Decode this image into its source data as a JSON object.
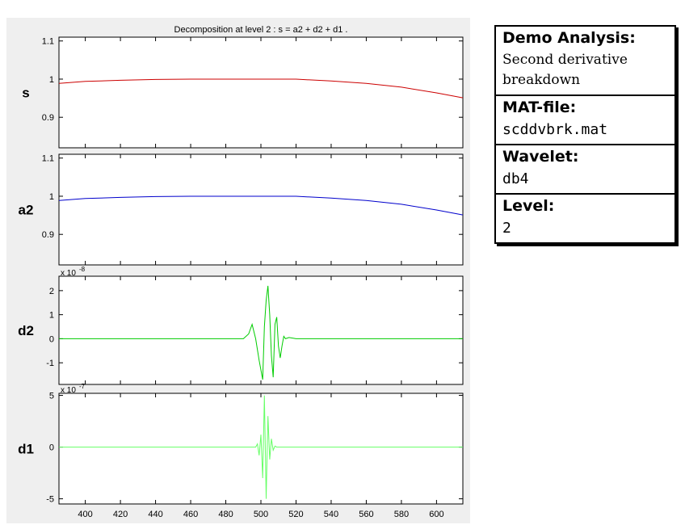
{
  "info_panel": {
    "sections": [
      {
        "heading": "Demo Analysis:",
        "value": "Second derivative breakdown"
      },
      {
        "heading": "MAT-file:",
        "value": "scddvbrk.mat"
      },
      {
        "heading": "Wavelet:",
        "value": "db4"
      },
      {
        "heading": "Level:",
        "value": "2"
      }
    ]
  },
  "chart_data": [
    {
      "type": "line",
      "title": "Decomposition at level 2 : s = a2 + d2 + d1 .",
      "ylabel": "s",
      "xlim": [
        385,
        615
      ],
      "ylim": [
        0.82,
        1.11
      ],
      "yticks": [
        0.9,
        1,
        1.1
      ],
      "ytick_labels": [
        "0.9",
        "1",
        "1.1"
      ],
      "exponent_label": "",
      "color": "#cc0000",
      "series": [
        {
          "x": [
            385,
            400,
            420,
            440,
            460,
            480,
            500,
            520,
            540,
            560,
            580,
            600,
            615
          ],
          "values": [
            0.989,
            0.994,
            0.997,
            0.999,
            1.0,
            1.0,
            1.0,
            1.0,
            0.995,
            0.989,
            0.979,
            0.964,
            0.951
          ]
        }
      ]
    },
    {
      "type": "line",
      "title": "",
      "ylabel": "a2",
      "xlim": [
        385,
        615
      ],
      "ylim": [
        0.82,
        1.11
      ],
      "yticks": [
        0.9,
        1,
        1.1
      ],
      "ytick_labels": [
        "0.9",
        "1",
        "1.1"
      ],
      "exponent_label": "",
      "color": "#0000cc",
      "series": [
        {
          "x": [
            385,
            400,
            420,
            440,
            460,
            480,
            500,
            520,
            540,
            560,
            580,
            600,
            615
          ],
          "values": [
            0.989,
            0.994,
            0.997,
            0.999,
            1.0,
            1.0,
            1.0,
            1.0,
            0.995,
            0.989,
            0.979,
            0.964,
            0.951
          ]
        }
      ]
    },
    {
      "type": "line",
      "title": "",
      "ylabel": "d2",
      "xlim": [
        385,
        615
      ],
      "ylim": [
        -1.9,
        2.6
      ],
      "yticks": [
        -1,
        0,
        1,
        2
      ],
      "ytick_labels": [
        "-1",
        "0",
        "1",
        "2"
      ],
      "exponent_label": "x 10",
      "exponent_power": "-8",
      "color": "#00cc00",
      "series": [
        {
          "x": [
            385,
            490,
            493,
            495,
            497,
            499,
            501,
            502,
            503,
            504,
            505,
            506,
            507,
            508,
            509,
            510,
            511,
            512,
            513,
            514,
            516,
            520,
            615
          ],
          "values": [
            0,
            0,
            0.2,
            0.6,
            0.0,
            -0.9,
            -1.7,
            0.5,
            1.6,
            2.2,
            1.0,
            -0.7,
            -1.6,
            0.6,
            0.9,
            -0.3,
            -0.8,
            -0.3,
            0.1,
            0,
            0.05,
            0,
            0
          ]
        }
      ]
    },
    {
      "type": "line",
      "title": "",
      "ylabel": "d1",
      "xlim": [
        385,
        615
      ],
      "ylim": [
        -5.5,
        5.2
      ],
      "yticks": [
        -5,
        0,
        5
      ],
      "ytick_labels": [
        "-5",
        "0",
        "5"
      ],
      "xticks": [
        400,
        420,
        440,
        460,
        480,
        500,
        520,
        540,
        560,
        580,
        600
      ],
      "xtick_labels": [
        "400",
        "420",
        "440",
        "460",
        "480",
        "500",
        "520",
        "540",
        "560",
        "580",
        "600"
      ],
      "exponent_label": "x 10",
      "exponent_power": "-7",
      "color": "#66ff66",
      "series": [
        {
          "x": [
            385,
            497,
            498,
            499,
            500,
            501,
            502,
            503,
            504,
            505,
            506,
            507,
            508,
            509,
            615
          ],
          "values": [
            0,
            0,
            0.3,
            -0.8,
            1.2,
            -3.0,
            5.0,
            -5.0,
            3.0,
            -1.2,
            0.8,
            -0.3,
            0.1,
            0,
            0
          ]
        }
      ]
    }
  ]
}
